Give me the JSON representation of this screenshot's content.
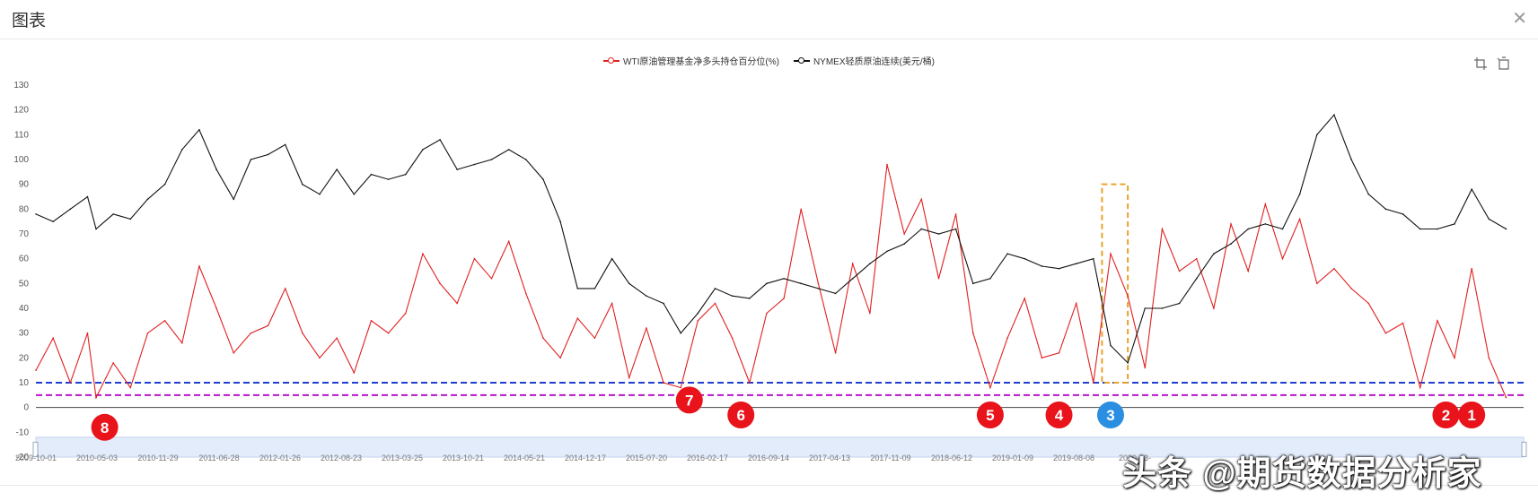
{
  "window": {
    "title": "图表"
  },
  "toolbox": {
    "items": [
      "area-zoom-icon",
      "zoom-reset-icon"
    ]
  },
  "watermark": "头条 @期货数据分析家",
  "chart_data": {
    "type": "line",
    "title": "",
    "xlabel": "",
    "ylabel": "",
    "ylim": [
      -20,
      130
    ],
    "yticks": [
      130,
      120,
      110,
      100,
      90,
      80,
      70,
      60,
      50,
      40,
      30,
      20,
      10,
      0,
      -10,
      -20
    ],
    "x_tick_labels": [
      "2009-10-01",
      "2010-05-03",
      "2010-11-29",
      "2011-06-28",
      "2012-01-26",
      "2012-08-23",
      "2013-03-25",
      "2013-10-21",
      "2014-05-21",
      "2014-12-17",
      "2015-07-20",
      "2016-02-17",
      "2016-09-14",
      "2017-04-13",
      "2017-11-09",
      "2018-06-12",
      "2019-01-09",
      "2019-08-08",
      "2020-03-",
      "",
      "",
      "",
      "",
      "",
      "",
      "",
      "2023-10-",
      "",
      ""
    ],
    "legend_position": "top-center",
    "grid": false,
    "reference_lines": [
      {
        "y": 10,
        "color": "#1f3fd1",
        "style": "dashed"
      },
      {
        "y": 5,
        "color": "#b515c8",
        "style": "dashed"
      }
    ],
    "series": [
      {
        "name": "WTI原油管理基金净多头持仓百分位(%)",
        "color": "#e02020",
        "x": [
          "2009-10",
          "2009-12",
          "2010-02",
          "2010-04",
          "2010-05",
          "2010-07",
          "2010-09",
          "2010-11",
          "2011-01",
          "2011-03",
          "2011-05",
          "2011-07",
          "2011-09",
          "2011-11",
          "2012-01",
          "2012-03",
          "2012-05",
          "2012-07",
          "2012-09",
          "2012-11",
          "2013-01",
          "2013-03",
          "2013-05",
          "2013-07",
          "2013-09",
          "2013-11",
          "2014-01",
          "2014-03",
          "2014-05",
          "2014-07",
          "2014-09",
          "2014-11",
          "2015-01",
          "2015-03",
          "2015-05",
          "2015-07",
          "2015-09",
          "2015-11",
          "2016-01",
          "2016-03",
          "2016-05",
          "2016-07",
          "2016-09",
          "2016-11",
          "2017-01",
          "2017-03",
          "2017-05",
          "2017-07",
          "2017-09",
          "2017-11",
          "2018-01",
          "2018-03",
          "2018-05",
          "2018-07",
          "2018-09",
          "2018-11",
          "2019-01",
          "2019-03",
          "2019-05",
          "2019-07",
          "2019-09",
          "2019-11",
          "2020-01",
          "2020-03",
          "2020-05",
          "2020-07",
          "2020-09",
          "2020-11",
          "2021-01",
          "2021-03",
          "2021-05",
          "2021-07",
          "2021-09",
          "2021-11",
          "2022-01",
          "2022-03",
          "2022-05",
          "2022-07",
          "2022-09",
          "2022-11",
          "2023-01",
          "2023-03",
          "2023-05",
          "2023-07",
          "2023-09",
          "2023-11",
          "2024-01"
        ],
        "y": [
          15,
          28,
          10,
          30,
          4,
          18,
          8,
          30,
          35,
          26,
          57,
          40,
          22,
          30,
          33,
          48,
          30,
          20,
          28,
          14,
          35,
          30,
          38,
          62,
          50,
          42,
          60,
          52,
          67,
          46,
          28,
          20,
          36,
          28,
          42,
          12,
          32,
          10,
          8,
          35,
          42,
          28,
          10,
          38,
          44,
          80,
          50,
          22,
          58,
          38,
          98,
          70,
          84,
          52,
          78,
          30,
          8,
          28,
          44,
          20,
          22,
          42,
          10,
          62,
          45,
          16,
          72,
          55,
          60,
          40,
          74,
          55,
          82,
          60,
          76,
          50,
          56,
          48,
          42,
          30,
          34,
          8,
          35,
          20,
          56,
          20,
          4
        ]
      },
      {
        "name": "NYMEX轻质原油连续(美元/桶)",
        "color": "#111111",
        "x": [
          "2009-10",
          "2009-12",
          "2010-02",
          "2010-04",
          "2010-05",
          "2010-07",
          "2010-09",
          "2010-11",
          "2011-01",
          "2011-03",
          "2011-05",
          "2011-07",
          "2011-09",
          "2011-11",
          "2012-01",
          "2012-03",
          "2012-05",
          "2012-07",
          "2012-09",
          "2012-11",
          "2013-01",
          "2013-03",
          "2013-05",
          "2013-07",
          "2013-09",
          "2013-11",
          "2014-01",
          "2014-03",
          "2014-05",
          "2014-07",
          "2014-09",
          "2014-11",
          "2015-01",
          "2015-03",
          "2015-05",
          "2015-07",
          "2015-09",
          "2015-11",
          "2016-01",
          "2016-03",
          "2016-05",
          "2016-07",
          "2016-09",
          "2016-11",
          "2017-01",
          "2017-03",
          "2017-05",
          "2017-07",
          "2017-09",
          "2017-11",
          "2018-01",
          "2018-03",
          "2018-05",
          "2018-07",
          "2018-09",
          "2018-11",
          "2019-01",
          "2019-03",
          "2019-05",
          "2019-07",
          "2019-09",
          "2019-11",
          "2020-01",
          "2020-03",
          "2020-05",
          "2020-07",
          "2020-09",
          "2020-11",
          "2021-01",
          "2021-03",
          "2021-05",
          "2021-07",
          "2021-09",
          "2021-11",
          "2022-01",
          "2022-03",
          "2022-05",
          "2022-07",
          "2022-09",
          "2022-11",
          "2023-01",
          "2023-03",
          "2023-05",
          "2023-07",
          "2023-09",
          "2023-11",
          "2024-01"
        ],
        "y": [
          78,
          75,
          80,
          85,
          72,
          78,
          76,
          84,
          90,
          104,
          112,
          96,
          84,
          100,
          102,
          106,
          90,
          86,
          96,
          86,
          94,
          92,
          94,
          104,
          108,
          96,
          98,
          100,
          104,
          100,
          92,
          75,
          48,
          48,
          60,
          50,
          45,
          42,
          30,
          38,
          48,
          45,
          44,
          50,
          52,
          50,
          48,
          46,
          52,
          58,
          63,
          66,
          72,
          70,
          72,
          50,
          52,
          62,
          60,
          57,
          56,
          58,
          60,
          25,
          18,
          40,
          40,
          42,
          52,
          62,
          66,
          72,
          74,
          72,
          86,
          110,
          118,
          100,
          86,
          80,
          78,
          72,
          72,
          74,
          88,
          76,
          72
        ]
      }
    ],
    "markers": [
      {
        "label": "8",
        "x": "2010-06",
        "y": -8,
        "color": "#e8131b"
      },
      {
        "label": "7",
        "x": "2016-02",
        "y": 3,
        "color": "#e8131b"
      },
      {
        "label": "6",
        "x": "2016-08",
        "y": -3,
        "color": "#e8131b"
      },
      {
        "label": "5",
        "x": "2019-01",
        "y": -3,
        "color": "#e8131b"
      },
      {
        "label": "4",
        "x": "2019-09",
        "y": -3,
        "color": "#e8131b"
      },
      {
        "label": "3",
        "x": "2020-03",
        "y": -3,
        "color": "#2a8fe0"
      },
      {
        "label": "2",
        "x": "2023-06",
        "y": -3,
        "color": "#e8131b"
      },
      {
        "label": "1",
        "x": "2023-09",
        "y": -3,
        "color": "#e8131b"
      }
    ],
    "highlight_box": {
      "x_start": "2020-02",
      "x_end": "2020-05",
      "y_start": 10,
      "y_end": 90,
      "color": "#e8a32a",
      "style": "dashed"
    }
  }
}
